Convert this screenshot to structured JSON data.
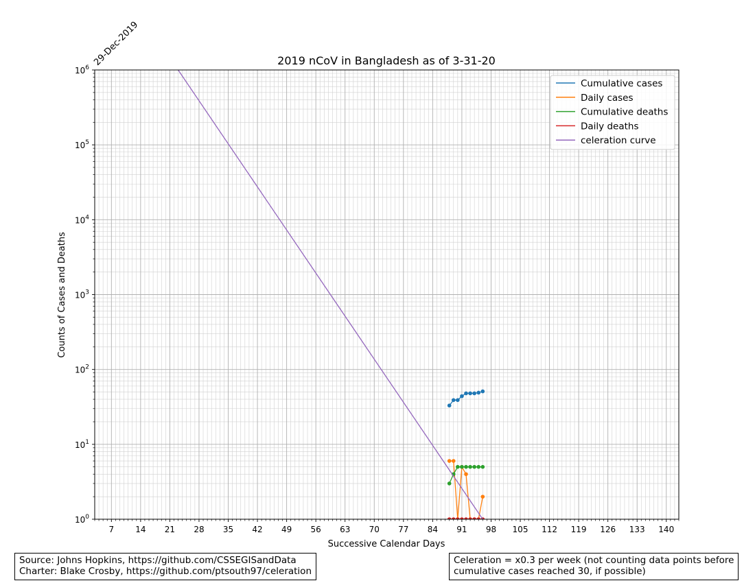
{
  "chart_data": {
    "type": "line",
    "title": "2019 nCoV in Bangladesh as of 3-31-20",
    "xlabel": "Successive Calendar Days",
    "ylabel": "Counts of Cases and Deaths",
    "start_date_label": "29-Dec-2019",
    "xlim": [
      3,
      143
    ],
    "ylim": [
      1,
      1000000
    ],
    "y_scale": "log",
    "x_ticks": [
      7,
      14,
      21,
      28,
      35,
      42,
      49,
      56,
      63,
      70,
      77,
      84,
      91,
      98,
      105,
      112,
      119,
      126,
      133,
      140
    ],
    "y_ticks": [
      {
        "base": "10",
        "exp": "0",
        "value": 1
      },
      {
        "base": "10",
        "exp": "1",
        "value": 10
      },
      {
        "base": "10",
        "exp": "2",
        "value": 100
      },
      {
        "base": "10",
        "exp": "3",
        "value": 1000
      },
      {
        "base": "10",
        "exp": "4",
        "value": 10000
      },
      {
        "base": "10",
        "exp": "5",
        "value": 100000
      },
      {
        "base": "10",
        "exp": "6",
        "value": 1000000
      }
    ],
    "grid": true,
    "legend_position": "top-right",
    "series": [
      {
        "name": "Cumulative cases",
        "color": "#1f77b4",
        "markers": true,
        "x": [
          88,
          89,
          90,
          91,
          92,
          93,
          94,
          95,
          96
        ],
        "y": [
          33,
          39,
          39,
          44,
          48,
          48,
          48,
          49,
          51
        ]
      },
      {
        "name": "Daily cases",
        "color": "#ff7f0e",
        "markers": true,
        "x": [
          88,
          89,
          90,
          91,
          92,
          93,
          94,
          95,
          96
        ],
        "y": [
          6,
          6,
          1,
          5,
          4,
          1,
          1,
          1,
          2
        ]
      },
      {
        "name": "Cumulative deaths",
        "color": "#2ca02c",
        "markers": true,
        "x": [
          88,
          89,
          90,
          91,
          92,
          93,
          94,
          95,
          96
        ],
        "y": [
          3,
          4,
          5,
          5,
          5,
          5,
          5,
          5,
          5
        ]
      },
      {
        "name": "Daily deaths",
        "color": "#d62728",
        "markers": true,
        "x": [
          88,
          89,
          90,
          91,
          92,
          93,
          94,
          95,
          96
        ],
        "y": [
          1,
          1,
          1,
          1,
          1,
          1,
          1,
          1,
          1
        ]
      },
      {
        "name": "celeration curve",
        "color": "#9467bd",
        "markers": false,
        "x": [
          23,
          96
        ],
        "y": [
          1000000,
          1
        ]
      }
    ]
  },
  "notes": {
    "source_line": "Source: Johns Hopkins, https://github.com/CSSEGISandData",
    "charter_line": "Charter: Blake Crosby, https://github.com/ptsouth97/celeration",
    "celeration_line1": "Celeration = x0.3 per week (not counting data points before",
    "celeration_line2": "cumulative cases reached 30, if possible)"
  }
}
